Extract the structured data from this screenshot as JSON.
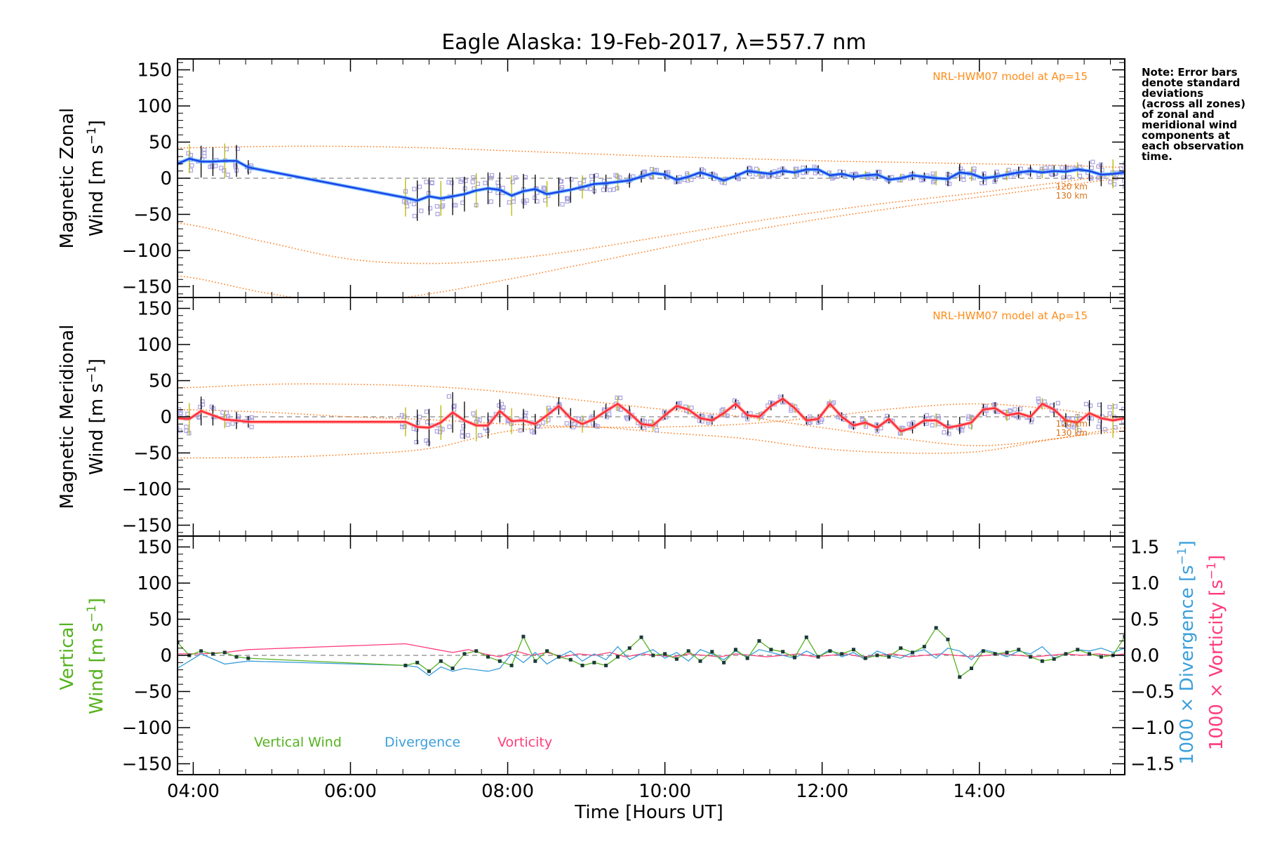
{
  "title": "Eagle Alaska: 19-Feb-2017, λ=557.7 nm",
  "note": [
    "Note: Error bars",
    "denote standard",
    "deviations",
    "(across all zones)",
    "of zonal and",
    "meridional wind",
    "components at",
    "each observation",
    "time."
  ],
  "colors": {
    "zonal": "#1f3fe6",
    "zonal_light": "#3fa9ff",
    "meridional": "#ff2a3a",
    "meridional_light": "#ff9a8c",
    "model": "#ff7a1a",
    "samples": "#a9a3e0",
    "errorbar": "#000000",
    "errorbar_alt": "#b8b400",
    "vertical": "#55b21f",
    "divergence": "#3c9fdb",
    "vorticity": "#ff3c7a",
    "zero_line": "#888888"
  },
  "x_axis": {
    "label": "Time [Hours UT]",
    "range_hours": [
      3.8,
      15.85
    ],
    "ticks": [
      4,
      6,
      8,
      10,
      12,
      14
    ],
    "tick_labels": [
      "04:00",
      "06:00",
      "08:00",
      "10:00",
      "12:00",
      "14:00"
    ]
  },
  "y_ticks": [
    150,
    100,
    50,
    0,
    -50,
    -100,
    -150
  ],
  "y_tick_labels": [
    "150",
    "100",
    "50",
    "0",
    "−50",
    "−100",
    "−150"
  ],
  "right_axis": {
    "ticks": [
      1.5,
      1.0,
      0.5,
      0.0,
      -0.5,
      -1.0,
      -1.5
    ],
    "tick_labels": [
      "1.5",
      "1.0",
      "0.5",
      "0.0",
      "−0.5",
      "−1.0",
      "−1.5"
    ],
    "label_div_prefix": "1000 × Divergence ",
    "label_div_unit": "[s",
    "label_vort_prefix": "1000 × Vorticity ",
    "label_vort_unit": "[s",
    "unit_exp": "−1",
    "unit_close": "]"
  },
  "panels": {
    "zonal": {
      "ylabel_1": "Magnetic Zonal",
      "ylabel_2": "Wind ",
      "ylabel_unit": "[m s",
      "ylabel_exp": "−1",
      "ylabel_close": "]",
      "model_label": "NRL-HWM07 model at Ap=15",
      "alt_labels": [
        "120 km",
        "130 km"
      ]
    },
    "meridional": {
      "ylabel_1": "Magnetic Meridional",
      "ylabel_2": "Wind ",
      "ylabel_unit": "[m s",
      "ylabel_exp": "−1",
      "ylabel_close": "]",
      "model_label": "NRL-HWM07 model at Ap=15",
      "alt_labels": [
        "120 km",
        "130 km"
      ]
    },
    "vertical": {
      "ylabel_1": "Vertical",
      "ylabel_2": "Wind ",
      "ylabel_unit": "[m s",
      "ylabel_exp": "−1",
      "ylabel_close": "]",
      "legend": [
        "Vertical Wind",
        "Divergence",
        "Vorticity"
      ]
    }
  },
  "chart_data": [
    {
      "type": "line",
      "panel": "zonal",
      "xlabel": "Time [Hours UT]",
      "ylabel": "Magnetic Zonal Wind [m s-1]",
      "ylim": [
        -165,
        165
      ],
      "x": [
        3.8,
        3.95,
        4.1,
        4.25,
        4.4,
        4.55,
        4.7,
        6.7,
        6.85,
        7.0,
        7.15,
        7.3,
        7.45,
        7.6,
        7.75,
        7.9,
        8.05,
        8.2,
        8.35,
        8.5,
        8.65,
        8.8,
        8.95,
        9.1,
        9.25,
        9.4,
        9.55,
        9.7,
        9.85,
        10.0,
        10.15,
        10.3,
        10.45,
        10.6,
        10.75,
        10.9,
        11.05,
        11.2,
        11.35,
        11.5,
        11.65,
        11.8,
        11.95,
        12.1,
        12.25,
        12.4,
        12.55,
        12.7,
        12.85,
        13.0,
        13.15,
        13.3,
        13.45,
        13.6,
        13.75,
        13.9,
        14.05,
        14.2,
        14.35,
        14.5,
        14.65,
        14.8,
        14.95,
        15.1,
        15.25,
        15.4,
        15.55,
        15.7,
        15.85
      ],
      "series": [
        {
          "values": [
            20,
            27,
            23,
            23,
            24,
            24,
            15,
            -27,
            -31,
            -25,
            -28,
            -25,
            -22,
            -17,
            -14,
            -16,
            -24,
            -18,
            -15,
            -22,
            -19,
            -16,
            -12,
            -8,
            -7,
            -5,
            -3,
            2,
            7,
            5,
            -2,
            2,
            8,
            3,
            -3,
            3,
            10,
            8,
            6,
            10,
            8,
            12,
            12,
            4,
            6,
            2,
            4,
            5,
            -2,
            0,
            4,
            2,
            0,
            -1,
            8,
            6,
            0,
            2,
            5,
            8,
            10,
            8,
            10,
            9,
            12,
            10,
            5,
            6,
            8
          ],
          "error": [
            22,
            20,
            22,
            20,
            24,
            22,
            10,
            26,
            28,
            26,
            24,
            26,
            24,
            24,
            22,
            24,
            28,
            24,
            20,
            18,
            20,
            18,
            16,
            14,
            12,
            12,
            10,
            8,
            8,
            6,
            6,
            6,
            6,
            6,
            5,
            5,
            6,
            6,
            5,
            6,
            6,
            6,
            6,
            5,
            5,
            5,
            6,
            6,
            6,
            6,
            6,
            6,
            10,
            10,
            12,
            10,
            8,
            8,
            8,
            8,
            8,
            8,
            8,
            10,
            10,
            14,
            16,
            20,
            22
          ]
        }
      ],
      "model_curves": [
        {
          "x": [
            3.8,
            5.0,
            6.0,
            7.0,
            8.0,
            9.0,
            10.0,
            11.0,
            12.0,
            13.0,
            14.0,
            15.0,
            15.85
          ],
          "values": [
            42,
            44,
            44,
            42,
            38,
            34,
            30,
            27,
            24,
            22,
            20,
            18,
            15
          ]
        },
        {
          "x": [
            3.8,
            5.0,
            6.0,
            7.0,
            8.0,
            9.0,
            10.0,
            11.0,
            12.0,
            13.0,
            14.0,
            15.0,
            15.85
          ],
          "values": [
            -62,
            -90,
            -112,
            -118,
            -112,
            -98,
            -80,
            -62,
            -46,
            -32,
            -20,
            -6,
            5
          ]
        },
        {
          "x": [
            3.8,
            5.0,
            6.0,
            7.0,
            8.0,
            9.0,
            10.0,
            11.0,
            12.0,
            13.0,
            14.0,
            15.0,
            15.85
          ],
          "values": [
            -135,
            -160,
            -172,
            -160,
            -140,
            -118,
            -96,
            -74,
            -56,
            -40,
            -26,
            -12,
            0
          ]
        }
      ]
    },
    {
      "type": "line",
      "panel": "meridional",
      "xlabel": "Time [Hours UT]",
      "ylabel": "Magnetic Meridional Wind [m s-1]",
      "ylim": [
        -165,
        165
      ],
      "x": [
        3.8,
        3.95,
        4.1,
        4.25,
        4.4,
        4.55,
        4.7,
        6.7,
        6.85,
        7.0,
        7.15,
        7.3,
        7.45,
        7.6,
        7.75,
        7.9,
        8.05,
        8.2,
        8.35,
        8.5,
        8.65,
        8.8,
        8.95,
        9.1,
        9.25,
        9.4,
        9.55,
        9.7,
        9.85,
        10.0,
        10.15,
        10.3,
        10.45,
        10.6,
        10.75,
        10.9,
        11.05,
        11.2,
        11.35,
        11.5,
        11.65,
        11.8,
        11.95,
        12.1,
        12.25,
        12.4,
        12.55,
        12.7,
        12.85,
        13.0,
        13.15,
        13.3,
        13.45,
        13.6,
        13.75,
        13.9,
        14.05,
        14.2,
        14.35,
        14.5,
        14.65,
        14.8,
        14.95,
        15.1,
        15.25,
        15.4,
        15.55,
        15.7,
        15.85
      ],
      "series": [
        {
          "values": [
            -2,
            -3,
            8,
            2,
            -4,
            -5,
            -7,
            -7,
            -14,
            -15,
            -8,
            6,
            -5,
            -12,
            -12,
            8,
            -6,
            -5,
            -10,
            2,
            15,
            -2,
            -10,
            -3,
            8,
            18,
            5,
            -10,
            -12,
            2,
            15,
            10,
            -2,
            -5,
            5,
            18,
            2,
            0,
            15,
            25,
            12,
            -5,
            -3,
            18,
            0,
            -12,
            -8,
            -15,
            -3,
            -20,
            -15,
            -5,
            -5,
            -15,
            -12,
            -8,
            10,
            12,
            2,
            5,
            0,
            18,
            10,
            -5,
            -8,
            5,
            -2,
            -5,
            -2
          ],
          "error": [
            20,
            22,
            20,
            14,
            12,
            12,
            8,
            20,
            24,
            26,
            24,
            28,
            26,
            22,
            18,
            16,
            18,
            16,
            14,
            12,
            12,
            14,
            12,
            12,
            10,
            10,
            10,
            8,
            8,
            6,
            6,
            6,
            6,
            6,
            6,
            6,
            6,
            6,
            6,
            6,
            6,
            6,
            6,
            6,
            6,
            6,
            6,
            6,
            6,
            6,
            8,
            8,
            10,
            10,
            12,
            10,
            8,
            8,
            8,
            8,
            8,
            8,
            10,
            10,
            12,
            18,
            22,
            24,
            26
          ]
        }
      ],
      "model_curves": [
        {
          "x": [
            3.8,
            5.0,
            6.0,
            7.0,
            8.0,
            9.0,
            10.0,
            11.0,
            12.0,
            13.0,
            14.0,
            15.0,
            15.85
          ],
          "values": [
            40,
            45,
            45,
            42,
            34,
            22,
            10,
            0,
            -15,
            -30,
            -40,
            -30,
            -15
          ]
        },
        {
          "x": [
            3.8,
            5.0,
            6.0,
            7.0,
            8.0,
            9.0,
            10.0,
            11.0,
            12.0,
            13.0,
            14.0,
            15.0,
            15.85
          ],
          "values": [
            10,
            6,
            0,
            -4,
            -10,
            -14,
            -14,
            -10,
            0,
            12,
            18,
            10,
            -2
          ]
        },
        {
          "x": [
            3.8,
            5.0,
            6.0,
            7.0,
            8.0,
            9.0,
            10.0,
            11.0,
            12.0,
            13.0,
            14.0,
            15.0,
            15.85
          ],
          "values": [
            -57,
            -56,
            -52,
            -44,
            -20,
            -14,
            -22,
            -30,
            -44,
            -50,
            -48,
            -30,
            -20
          ]
        }
      ]
    },
    {
      "type": "line",
      "panel": "vertical",
      "xlabel": "Time [Hours UT]",
      "ylabel": "Vertical Wind [m s-1]",
      "ylim": [
        -165,
        165
      ],
      "y2label": "1000 × Divergence / Vorticity [s-1]",
      "y2lim": [
        -1.65,
        1.65
      ],
      "series": [
        {
          "name": "Vertical Wind",
          "axis": "left",
          "x": [
            3.8,
            3.95,
            4.1,
            4.25,
            4.4,
            4.55,
            4.7,
            6.7,
            6.85,
            7.0,
            7.15,
            7.3,
            7.45,
            7.6,
            7.75,
            7.9,
            8.05,
            8.2,
            8.35,
            8.5,
            8.65,
            8.8,
            8.95,
            9.1,
            9.25,
            9.4,
            9.55,
            9.7,
            9.85,
            10.0,
            10.15,
            10.3,
            10.45,
            10.6,
            10.75,
            10.9,
            11.05,
            11.2,
            11.35,
            11.5,
            11.65,
            11.8,
            11.95,
            12.1,
            12.25,
            12.4,
            12.55,
            12.7,
            12.85,
            13.0,
            13.15,
            13.3,
            13.45,
            13.6,
            13.75,
            13.9,
            14.05,
            14.2,
            14.35,
            14.5,
            14.65,
            14.8,
            14.95,
            15.1,
            15.25,
            15.4,
            15.55,
            15.7,
            15.85
          ],
          "values": [
            18,
            0,
            6,
            2,
            4,
            -2,
            -4,
            -14,
            -10,
            -22,
            -8,
            -18,
            2,
            6,
            -2,
            -8,
            -14,
            26,
            -8,
            6,
            -2,
            -6,
            -14,
            -10,
            -14,
            -2,
            10,
            25,
            0,
            2,
            -5,
            6,
            -8,
            5,
            -10,
            8,
            -4,
            20,
            8,
            5,
            -3,
            25,
            -2,
            6,
            2,
            8,
            -4,
            0,
            -2,
            10,
            4,
            12,
            38,
            22,
            -30,
            -18,
            6,
            2,
            4,
            8,
            -2,
            -8,
            -5,
            2,
            8,
            2,
            -2,
            0,
            26
          ]
        },
        {
          "name": "Divergence",
          "axis": "right",
          "x": [
            3.8,
            4.1,
            4.4,
            4.7,
            6.7,
            6.85,
            7.0,
            7.15,
            7.3,
            7.45,
            7.6,
            7.75,
            7.9,
            8.05,
            8.2,
            8.35,
            8.5,
            8.65,
            8.8,
            8.95,
            9.1,
            9.25,
            9.4,
            9.55,
            9.7,
            9.85,
            10.0,
            10.15,
            10.3,
            10.45,
            10.6,
            10.75,
            10.9,
            11.05,
            11.2,
            11.35,
            11.5,
            11.65,
            11.8,
            11.95,
            12.1,
            12.25,
            12.4,
            12.55,
            12.7,
            12.85,
            13.0,
            13.15,
            13.3,
            13.45,
            13.6,
            13.75,
            13.9,
            14.05,
            14.2,
            14.35,
            14.5,
            14.65,
            14.8,
            14.95,
            15.1,
            15.25,
            15.4,
            15.55,
            15.7,
            15.85
          ],
          "values": [
            -0.18,
            0.02,
            -0.12,
            -0.08,
            -0.14,
            -0.16,
            -0.28,
            -0.16,
            -0.22,
            -0.18,
            -0.2,
            -0.22,
            -0.18,
            0.02,
            -0.1,
            0.04,
            -0.12,
            -0.02,
            0.06,
            -0.08,
            0.02,
            -0.06,
            0.12,
            -0.06,
            0.02,
            0.08,
            -0.04,
            0.04,
            -0.08,
            0.08,
            0.02,
            -0.06,
            0.06,
            -0.02,
            0.08,
            0.04,
            0.0,
            -0.04,
            0.06,
            -0.02,
            0.08,
            -0.02,
            0.04,
            -0.06,
            0.06,
            0.0,
            -0.04,
            0.04,
            0.08,
            -0.04,
            0.1,
            0.06,
            -0.06,
            0.08,
            0.04,
            -0.02,
            0.06,
            0.02,
            0.12,
            -0.04,
            0.02,
            0.08,
            0.06,
            0.1,
            0.04,
            0.1
          ]
        },
        {
          "name": "Vorticity",
          "axis": "right",
          "x": [
            3.8,
            4.1,
            4.4,
            4.7,
            5.2,
            5.7,
            6.2,
            6.7,
            6.9,
            7.1,
            7.3,
            7.5,
            7.7,
            7.9,
            8.1,
            8.3,
            8.5,
            8.7,
            8.9,
            9.1,
            9.3,
            9.5,
            9.7,
            9.9,
            10.1,
            10.3,
            10.5,
            10.7,
            10.9,
            11.1,
            11.3,
            11.5,
            11.7,
            11.9,
            12.1,
            12.3,
            12.5,
            12.7,
            12.9,
            13.1,
            13.3,
            13.5,
            13.7,
            13.9,
            14.1,
            14.3,
            14.5,
            14.7,
            14.9,
            15.1,
            15.3,
            15.5,
            15.7,
            15.85
          ],
          "values": [
            0.02,
            0.02,
            0.04,
            0.08,
            0.1,
            0.12,
            0.14,
            0.16,
            0.12,
            0.08,
            0.04,
            0.08,
            0.02,
            -0.02,
            0.06,
            0.0,
            0.04,
            -0.02,
            0.02,
            0.0,
            0.04,
            -0.02,
            0.02,
            0.0,
            -0.02,
            0.02,
            0.0,
            -0.02,
            0.02,
            0.0,
            -0.02,
            0.0,
            0.02,
            -0.02,
            0.0,
            0.02,
            -0.02,
            0.0,
            0.02,
            -0.02,
            0.0,
            0.02,
            0.0,
            -0.02,
            0.0,
            0.02,
            0.0,
            -0.02,
            0.0,
            0.02,
            0.0,
            0.02,
            0.0,
            0.02
          ]
        }
      ]
    }
  ]
}
